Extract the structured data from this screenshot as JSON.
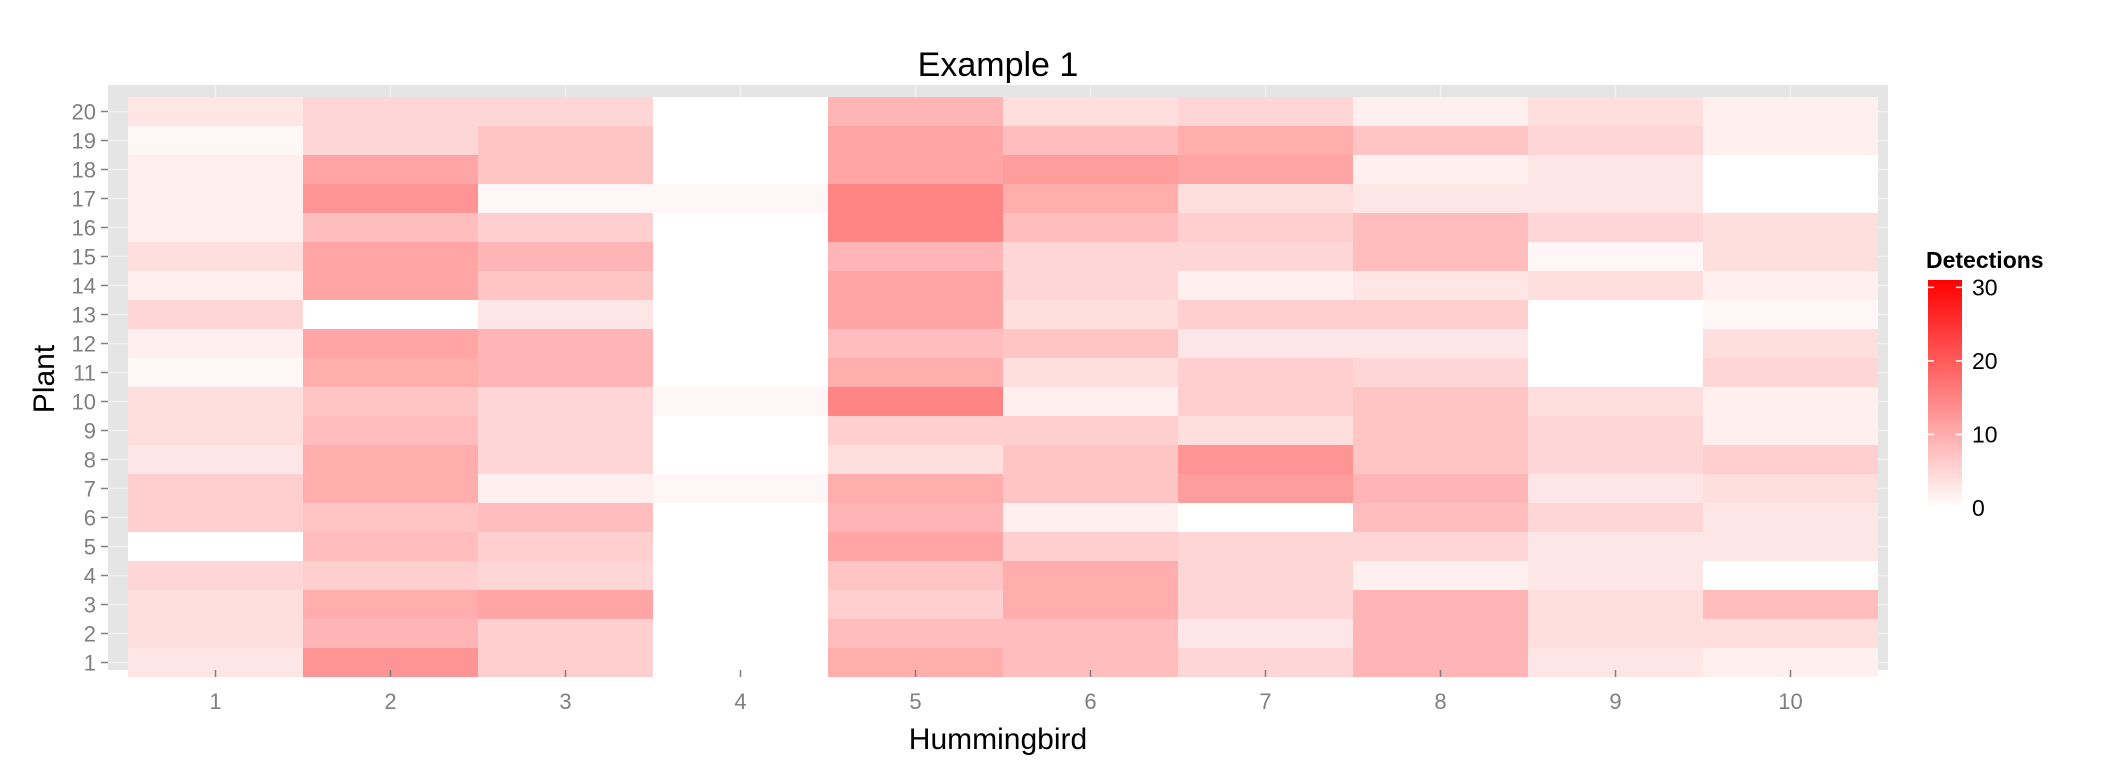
{
  "chart_data": {
    "type": "heatmap",
    "title": "Example 1",
    "xlabel": "Hummingbird",
    "ylabel": "Plant",
    "x_categories": [
      "1",
      "2",
      "3",
      "4",
      "5",
      "6",
      "7",
      "8",
      "9",
      "10"
    ],
    "y_categories": [
      "1",
      "2",
      "3",
      "4",
      "5",
      "6",
      "7",
      "8",
      "9",
      "10",
      "11",
      "12",
      "13",
      "14",
      "15",
      "16",
      "17",
      "18",
      "19",
      "20"
    ],
    "values": [
      [
        3,
        13,
        6,
        0,
        10,
        8,
        5,
        9,
        3,
        2
      ],
      [
        4,
        9,
        6,
        0,
        8,
        8,
        3,
        9,
        4,
        4
      ],
      [
        4,
        10,
        11,
        0,
        6,
        10,
        5,
        9,
        4,
        8
      ],
      [
        5,
        6,
        5,
        0,
        7,
        10,
        5,
        2,
        3,
        0
      ],
      [
        0,
        8,
        6,
        0,
        11,
        6,
        5,
        5,
        3,
        3
      ],
      [
        6,
        7,
        8,
        0,
        9,
        2,
        0,
        8,
        5,
        3
      ],
      [
        6,
        10,
        2,
        1,
        10,
        7,
        12,
        9,
        3,
        4
      ],
      [
        3,
        10,
        5,
        0,
        4,
        7,
        13,
        7,
        5,
        6
      ],
      [
        4,
        8,
        5,
        0,
        6,
        6,
        4,
        7,
        5,
        2
      ],
      [
        4,
        7,
        5,
        1,
        15,
        2,
        6,
        7,
        4,
        2
      ],
      [
        1,
        10,
        9,
        0,
        10,
        4,
        6,
        5,
        0,
        5
      ],
      [
        2,
        11,
        9,
        0,
        8,
        7,
        3,
        3,
        0,
        4
      ],
      [
        5,
        0,
        3,
        0,
        11,
        4,
        6,
        6,
        0,
        1
      ],
      [
        2,
        11,
        7,
        0,
        11,
        5,
        2,
        3,
        4,
        2
      ],
      [
        4,
        11,
        9,
        0,
        9,
        5,
        5,
        8,
        1,
        4
      ],
      [
        2,
        8,
        6,
        0,
        15,
        8,
        6,
        8,
        5,
        4
      ],
      [
        2,
        13,
        1,
        1,
        15,
        10,
        4,
        3,
        3,
        0
      ],
      [
        2,
        11,
        7,
        0,
        11,
        12,
        11,
        2,
        3,
        0
      ],
      [
        1,
        5,
        7,
        0,
        11,
        8,
        10,
        7,
        5,
        2
      ],
      [
        3,
        5,
        5,
        0,
        9,
        4,
        5,
        2,
        4,
        2
      ]
    ],
    "color_low": "#ffffff",
    "color_high": "#ff0000",
    "limits": [
      0,
      31
    ],
    "legend": {
      "title": "Detections",
      "ticks": [
        0,
        10,
        20,
        30
      ],
      "position": "right"
    },
    "grid": true,
    "panel_color": "#e5e5e5"
  }
}
